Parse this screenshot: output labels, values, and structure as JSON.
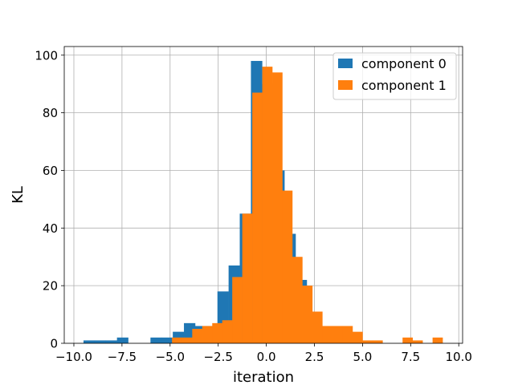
{
  "chart_data": {
    "type": "bar",
    "xlabel": "iteration",
    "ylabel": "KL",
    "xlim": [
      -10.5,
      10.2
    ],
    "ylim": [
      0,
      103
    ],
    "grid": true,
    "legend_placement": "top-right",
    "xticks": [
      -10.0,
      -7.5,
      -5.0,
      -2.5,
      0.0,
      2.5,
      5.0,
      7.5,
      10.0
    ],
    "xtick_labels": [
      "−10.0",
      "−7.5",
      "−5.0",
      "−2.5",
      "0.0",
      "2.5",
      "5.0",
      "7.5",
      "10.0"
    ],
    "yticks": [
      0,
      20,
      40,
      60,
      80,
      100
    ],
    "ytick_labels": [
      "0",
      "20",
      "40",
      "60",
      "80",
      "100"
    ],
    "series": [
      {
        "name": "component 0",
        "color": "#1f77b4",
        "bins": [
          [
            -9.5,
            -8.92,
            1
          ],
          [
            -8.92,
            -8.34,
            1
          ],
          [
            -8.34,
            -7.76,
            1
          ],
          [
            -7.76,
            -7.18,
            2
          ],
          [
            -7.18,
            -6.6,
            0
          ],
          [
            -6.6,
            -6.02,
            0
          ],
          [
            -6.02,
            -5.44,
            2
          ],
          [
            -5.44,
            -4.86,
            2
          ],
          [
            -4.86,
            -4.28,
            4
          ],
          [
            -4.28,
            -3.7,
            7
          ],
          [
            -3.7,
            -3.12,
            6
          ],
          [
            -3.12,
            -2.54,
            6
          ],
          [
            -2.54,
            -1.96,
            18
          ],
          [
            -1.96,
            -1.38,
            27
          ],
          [
            -1.38,
            -0.8,
            45
          ],
          [
            -0.8,
            -0.22,
            98
          ],
          [
            -0.22,
            0.36,
            90
          ],
          [
            0.36,
            0.94,
            60
          ],
          [
            0.94,
            1.52,
            38
          ],
          [
            1.52,
            2.1,
            22
          ],
          [
            2.1,
            2.68,
            8
          ],
          [
            2.68,
            3.26,
            3
          ]
        ]
      },
      {
        "name": "component 1",
        "color": "#ff7f0e",
        "bins": [
          [
            -4.9,
            -4.38,
            2
          ],
          [
            -4.38,
            -3.85,
            2
          ],
          [
            -3.85,
            -3.33,
            5
          ],
          [
            -3.33,
            -2.81,
            6
          ],
          [
            -2.81,
            -2.29,
            7
          ],
          [
            -2.29,
            -1.77,
            8
          ],
          [
            -1.77,
            -1.25,
            23
          ],
          [
            -1.25,
            -0.73,
            45
          ],
          [
            -0.73,
            -0.21,
            87
          ],
          [
            -0.21,
            0.31,
            96
          ],
          [
            0.31,
            0.83,
            94
          ],
          [
            0.83,
            1.35,
            53
          ],
          [
            1.35,
            1.87,
            30
          ],
          [
            1.87,
            2.39,
            20
          ],
          [
            2.39,
            2.91,
            11
          ],
          [
            2.91,
            3.43,
            6
          ],
          [
            3.43,
            3.95,
            6
          ],
          [
            3.95,
            4.48,
            6
          ],
          [
            4.48,
            5.0,
            4
          ],
          [
            5.0,
            5.52,
            1
          ],
          [
            5.52,
            6.04,
            1
          ],
          [
            6.04,
            6.56,
            0
          ],
          [
            6.56,
            7.08,
            0
          ],
          [
            7.08,
            7.6,
            2
          ],
          [
            7.6,
            8.12,
            1
          ],
          [
            8.12,
            8.64,
            0
          ],
          [
            8.64,
            9.16,
            2
          ]
        ]
      }
    ]
  }
}
